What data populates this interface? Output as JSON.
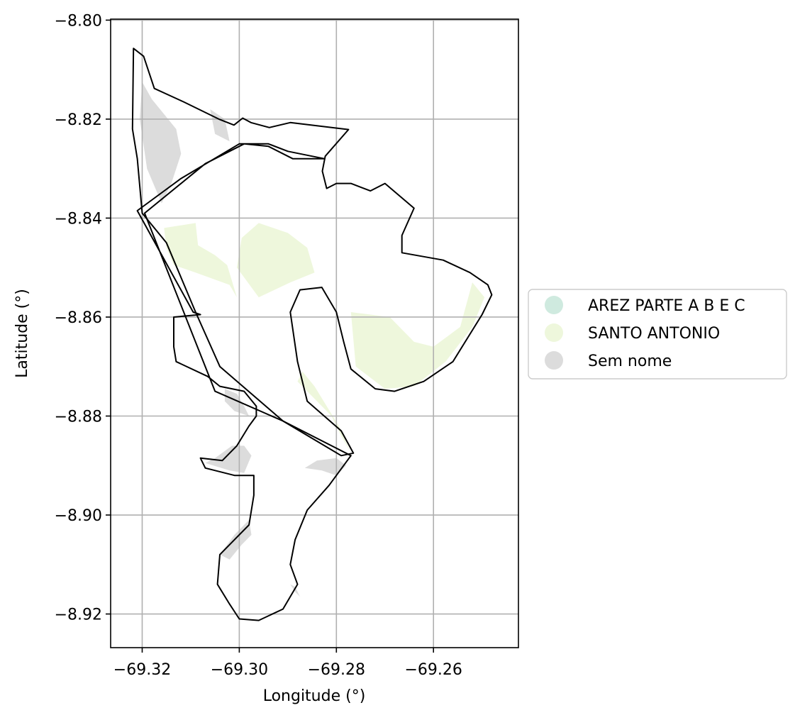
{
  "chart_data": {
    "type": "map",
    "xlabel": "Longitude (°)",
    "ylabel": "Latitude (°)",
    "xlim": [
      -69.3265,
      -69.2425
    ],
    "ylim": [
      -8.9268,
      -8.7998
    ],
    "x_ticks": [
      -69.32,
      -69.3,
      -69.28,
      -69.26
    ],
    "x_tick_labels": [
      "−69.32",
      "−69.30",
      "−69.28",
      "−69.26"
    ],
    "y_ticks": [
      -8.8,
      -8.82,
      -8.84,
      -8.86,
      -8.88,
      -8.9,
      -8.92
    ],
    "y_tick_labels": [
      "−8.80",
      "−8.82",
      "−8.84",
      "−8.86",
      "−8.88",
      "−8.90",
      "−8.92"
    ],
    "grid": true,
    "legend_position": "right",
    "legend": [
      {
        "label": "AREZ PARTE A B E C",
        "color": "#cfeadf"
      },
      {
        "label": "SANTO ANTONIO",
        "color": "#eef7dc"
      },
      {
        "label": "Sem nome",
        "color": "#dcdcdc"
      }
    ],
    "region_outlines": [
      {
        "name": "northern-tract",
        "points": [
          [
            -69.3218,
            -8.8057
          ],
          [
            -69.3197,
            -8.8073
          ],
          [
            -69.3175,
            -8.8138
          ],
          [
            -69.3115,
            -8.8165
          ],
          [
            -69.3042,
            -8.82
          ],
          [
            -69.3011,
            -8.8212
          ],
          [
            -69.2993,
            -8.8198
          ],
          [
            -69.2976,
            -8.8207
          ],
          [
            -69.2938,
            -8.8217
          ],
          [
            -69.2895,
            -8.8207
          ],
          [
            -69.2775,
            -8.8221
          ],
          [
            -69.2823,
            -8.8275
          ],
          [
            -69.2829,
            -8.8305
          ],
          [
            -69.282,
            -8.834
          ],
          [
            -69.28,
            -8.833
          ],
          [
            -69.277,
            -8.833
          ],
          [
            -69.273,
            -8.8345
          ],
          [
            -69.27,
            -8.833
          ],
          [
            -69.264,
            -8.838
          ],
          [
            -69.2665,
            -8.8435
          ],
          [
            -69.2665,
            -8.847
          ],
          [
            -69.258,
            -8.8485
          ],
          [
            -69.2525,
            -8.851
          ],
          [
            -69.2488,
            -8.8535
          ],
          [
            -69.248,
            -8.8555
          ],
          [
            -69.25,
            -8.8595
          ],
          [
            -69.256,
            -8.869
          ],
          [
            -69.262,
            -8.873
          ],
          [
            -69.268,
            -8.875
          ],
          [
            -69.272,
            -8.8745
          ],
          [
            -69.277,
            -8.8705
          ],
          [
            -69.2785,
            -8.865
          ],
          [
            -69.28,
            -8.859
          ],
          [
            -69.283,
            -8.854
          ],
          [
            -69.2875,
            -8.8545
          ],
          [
            -69.2895,
            -8.859
          ],
          [
            -69.288,
            -8.869
          ],
          [
            -69.286,
            -8.877
          ],
          [
            -69.279,
            -8.883
          ],
          [
            -69.2765,
            -8.8875
          ],
          [
            -69.279,
            -8.888
          ],
          [
            -69.291,
            -8.881
          ],
          [
            -69.304,
            -8.87
          ],
          [
            -69.309,
            -8.859
          ],
          [
            -69.315,
            -8.845
          ],
          [
            -69.32,
            -8.839
          ],
          [
            -69.321,
            -8.828
          ],
          [
            -69.322,
            -8.822
          ],
          [
            -69.3218,
            -8.8057
          ]
        ]
      },
      {
        "name": "southern-tract",
        "points": [
          [
            -69.3195,
            -8.839
          ],
          [
            -69.307,
            -8.829
          ],
          [
            -69.299,
            -8.825
          ],
          [
            -69.294,
            -8.8255
          ],
          [
            -69.289,
            -8.828
          ],
          [
            -69.2825,
            -8.828
          ],
          [
            -69.29,
            -8.8265
          ],
          [
            -69.294,
            -8.825
          ],
          [
            -69.3,
            -8.825
          ],
          [
            -69.312,
            -8.832
          ],
          [
            -69.321,
            -8.8385
          ],
          [
            -69.3095,
            -8.859
          ],
          [
            -69.308,
            -8.8595
          ],
          [
            -69.3135,
            -8.86
          ],
          [
            -69.3135,
            -8.866
          ],
          [
            -69.313,
            -8.869
          ],
          [
            -69.3065,
            -8.872
          ],
          [
            -69.304,
            -8.874
          ],
          [
            -69.299,
            -8.875
          ],
          [
            -69.2965,
            -8.878
          ],
          [
            -69.2965,
            -8.88
          ],
          [
            -69.298,
            -8.882
          ],
          [
            -69.3005,
            -8.886
          ],
          [
            -69.3035,
            -8.889
          ],
          [
            -69.308,
            -8.8885
          ],
          [
            -69.307,
            -8.8905
          ],
          [
            -69.301,
            -8.892
          ],
          [
            -69.297,
            -8.892
          ],
          [
            -69.297,
            -8.896
          ],
          [
            -69.298,
            -8.902
          ],
          [
            -69.304,
            -8.908
          ],
          [
            -69.3045,
            -8.914
          ],
          [
            -69.302,
            -8.918
          ],
          [
            -69.3,
            -8.921
          ],
          [
            -69.296,
            -8.9213
          ],
          [
            -69.291,
            -8.919
          ],
          [
            -69.288,
            -8.914
          ],
          [
            -69.2895,
            -8.91
          ],
          [
            -69.2885,
            -8.905
          ],
          [
            -69.286,
            -8.899
          ],
          [
            -69.2815,
            -8.894
          ],
          [
            -69.277,
            -8.888
          ],
          [
            -69.291,
            -8.881
          ],
          [
            -69.305,
            -8.875
          ],
          [
            -69.3195,
            -8.839
          ]
        ]
      }
    ],
    "regions": [
      {
        "category": "SANTO ANTONIO",
        "points": [
          [
            -69.3155,
            -8.842
          ],
          [
            -69.309,
            -8.841
          ],
          [
            -69.3085,
            -8.8455
          ],
          [
            -69.305,
            -8.8475
          ],
          [
            -69.3025,
            -8.8495
          ],
          [
            -69.3005,
            -8.856
          ],
          [
            -69.302,
            -8.8535
          ],
          [
            -69.309,
            -8.851
          ],
          [
            -69.3135,
            -8.8495
          ],
          [
            -69.315,
            -8.846
          ]
        ]
      },
      {
        "category": "SANTO ANTONIO",
        "points": [
          [
            -69.296,
            -8.841
          ],
          [
            -69.29,
            -8.843
          ],
          [
            -69.286,
            -8.846
          ],
          [
            -69.2845,
            -8.851
          ],
          [
            -69.2895,
            -8.853
          ],
          [
            -69.296,
            -8.856
          ],
          [
            -69.3005,
            -8.85
          ],
          [
            -69.2995,
            -8.844
          ]
        ]
      },
      {
        "category": "SANTO ANTONIO",
        "points": [
          [
            -69.277,
            -8.859
          ],
          [
            -69.269,
            -8.86
          ],
          [
            -69.264,
            -8.865
          ],
          [
            -69.26,
            -8.866
          ],
          [
            -69.2545,
            -8.862
          ],
          [
            -69.252,
            -8.853
          ],
          [
            -69.2495,
            -8.856
          ],
          [
            -69.252,
            -8.862
          ],
          [
            -69.2575,
            -8.869
          ],
          [
            -69.264,
            -8.874
          ],
          [
            -69.27,
            -8.8745
          ],
          [
            -69.276,
            -8.87
          ]
        ]
      },
      {
        "category": "SANTO ANTONIO",
        "points": [
          [
            -69.288,
            -8.873
          ],
          [
            -69.285,
            -8.876
          ],
          [
            -69.281,
            -8.88
          ],
          [
            -69.279,
            -8.884
          ],
          [
            -69.277,
            -8.8875
          ],
          [
            -69.2795,
            -8.882
          ],
          [
            -69.2845,
            -8.874
          ],
          [
            -69.287,
            -8.871
          ]
        ]
      },
      {
        "category": "Sem nome",
        "points": [
          [
            -69.32,
            -8.8125
          ],
          [
            -69.318,
            -8.816
          ],
          [
            -69.3155,
            -8.819
          ],
          [
            -69.313,
            -8.822
          ],
          [
            -69.312,
            -8.827
          ],
          [
            -69.314,
            -8.833
          ],
          [
            -69.316,
            -8.837
          ],
          [
            -69.319,
            -8.83
          ],
          [
            -69.3205,
            -8.82
          ]
        ]
      },
      {
        "category": "Sem nome",
        "points": [
          [
            -69.306,
            -8.818
          ],
          [
            -69.303,
            -8.82
          ],
          [
            -69.302,
            -8.8245
          ],
          [
            -69.305,
            -8.823
          ]
        ]
      },
      {
        "category": "Sem nome",
        "points": [
          [
            -69.303,
            -8.8745
          ],
          [
            -69.3005,
            -8.8755
          ],
          [
            -69.299,
            -8.878
          ],
          [
            -69.298,
            -8.88
          ],
          [
            -69.301,
            -8.879
          ],
          [
            -69.303,
            -8.877
          ]
        ]
      },
      {
        "category": "Sem nome",
        "points": [
          [
            -69.3015,
            -8.886
          ],
          [
            -69.305,
            -8.8885
          ],
          [
            -69.307,
            -8.8895
          ],
          [
            -69.302,
            -8.891
          ],
          [
            -69.299,
            -8.8915
          ],
          [
            -69.2975,
            -8.888
          ],
          [
            -69.299,
            -8.886
          ]
        ]
      },
      {
        "category": "Sem nome",
        "points": [
          [
            -69.2865,
            -8.8905
          ],
          [
            -69.283,
            -8.891
          ],
          [
            -69.28,
            -8.892
          ],
          [
            -69.278,
            -8.89
          ],
          [
            -69.28,
            -8.8885
          ],
          [
            -69.284,
            -8.889
          ]
        ]
      },
      {
        "category": "Sem nome",
        "points": [
          [
            -69.298,
            -8.901
          ],
          [
            -69.301,
            -8.904
          ],
          [
            -69.304,
            -8.908
          ],
          [
            -69.302,
            -8.909
          ],
          [
            -69.2995,
            -8.906
          ],
          [
            -69.2975,
            -8.904
          ]
        ]
      },
      {
        "category": "Sem nome",
        "points": [
          [
            -69.2895,
            -8.914
          ],
          [
            -69.2885,
            -8.9155
          ],
          [
            -69.2875,
            -8.9165
          ],
          [
            -69.2885,
            -8.9145
          ]
        ]
      }
    ]
  }
}
